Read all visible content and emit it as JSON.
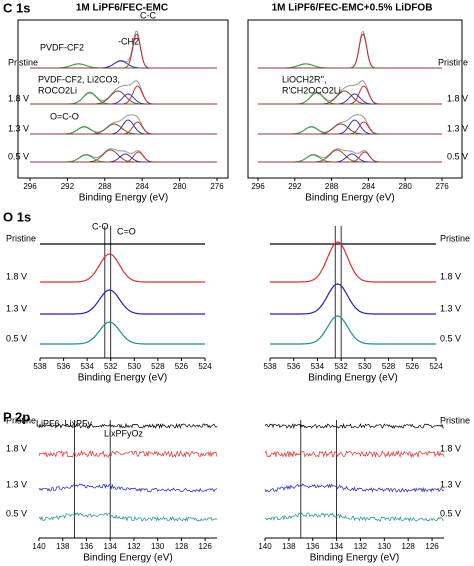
{
  "panels": [
    {
      "title": "C 1s",
      "columns": [
        "1M LiPF6/FEC-EMC",
        "1M LiPF6/FEC-EMC+0.5% LiDFOB"
      ],
      "x_label": "Binding Energy (eV)",
      "xlim": [
        296,
        276
      ],
      "xticks": [
        296,
        292,
        288,
        284,
        280,
        276
      ],
      "rows": [
        "Pristine",
        "1.8 V",
        "1.3 V",
        "0.5 V"
      ],
      "annotations": [
        {
          "text": "C-C",
          "color": "#444444"
        },
        {
          "text": "-CH2",
          "color": "#2020c0"
        },
        {
          "text": "PVDF-CF2",
          "color": "#2ca02c"
        },
        {
          "text": "PVDF-CF2, Li2CO3,",
          "color": "#c02020"
        },
        {
          "text": "ROCO2Li",
          "color": "#c02020"
        },
        {
          "text": "O=C-O",
          "color": "#c02020"
        },
        {
          "text": "LiOCH2R'',",
          "color": "#f07010"
        },
        {
          "text": "R'CH2OCO2Li",
          "color": "#f07010"
        }
      ]
    },
    {
      "title": "O 1s",
      "x_label": "Binding Energy (eV)",
      "xlim": [
        538,
        524
      ],
      "xticks": [
        538,
        536,
        534,
        532,
        530,
        528,
        526,
        524
      ],
      "rows": [
        "Pristine",
        "1.8 V",
        "1.3 V",
        "0.5 V"
      ],
      "annotations": [
        {
          "text": "C-O",
          "color": "#2ca02c"
        },
        {
          "text": "C=O",
          "color": "#c02020"
        }
      ],
      "reference_lines": [
        532.5,
        532
      ]
    },
    {
      "title": "P 2p",
      "x_label": "Binding Energy (eV)",
      "xlim": [
        140,
        125
      ],
      "xticks": [
        140,
        138,
        136,
        134,
        132,
        130,
        128,
        126
      ],
      "rows": [
        "Pristine",
        "1.8 V",
        "1.3 V",
        "0.5 V"
      ],
      "annotations": [
        {
          "text": "LiPF6, LixPFy",
          "color": "#2ca02c"
        },
        {
          "text": "LixPFyOz",
          "color": "#2ca02c"
        }
      ],
      "reference_lines": [
        137,
        134
      ]
    }
  ]
}
